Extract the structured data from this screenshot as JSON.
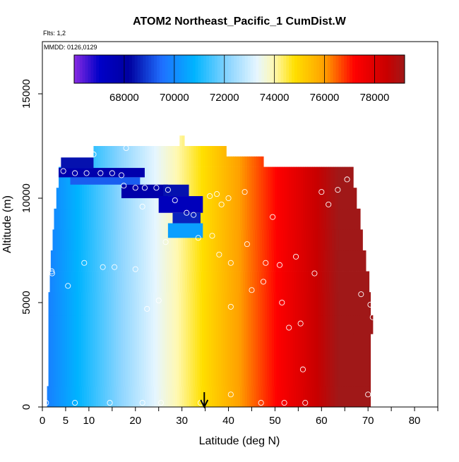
{
  "chart_data": {
    "type": "heatmap",
    "title": "ATOM2 Northeast_Pacific_1 CumDist.W",
    "subtitle_flights": "Flts: 1,2",
    "subtitle_dates": "MMDD: 0126,0129",
    "xlabel": "Latitude (deg N)",
    "ylabel": "Altitude (m)",
    "xlim": [
      0,
      85
    ],
    "ylim": [
      0,
      17500
    ],
    "x_ticks": [
      0,
      5,
      10,
      20,
      30,
      40,
      50,
      60,
      70,
      80
    ],
    "x_minor_ticks": [
      15,
      25,
      35,
      45,
      55,
      65,
      75,
      85
    ],
    "y_ticks": [
      0,
      5000,
      10000,
      15000
    ],
    "colorbar": {
      "range": [
        66000,
        79200
      ],
      "tick_values": [
        68000,
        70000,
        72000,
        74000,
        76000,
        78000
      ],
      "tick_labels": [
        "68000",
        "70000",
        "72000",
        "74000",
        "76000",
        "78000"
      ],
      "stops": [
        {
          "v": 66000,
          "c": "#8a2be2"
        },
        {
          "v": 67000,
          "c": "#0000c8"
        },
        {
          "v": 68200,
          "c": "#0000a0"
        },
        {
          "v": 69500,
          "c": "#1f6fff"
        },
        {
          "v": 70800,
          "c": "#00b4ff"
        },
        {
          "v": 72200,
          "c": "#8fd6ff"
        },
        {
          "v": 73300,
          "c": "#e6f6ff"
        },
        {
          "v": 74000,
          "c": "#fff8b0"
        },
        {
          "v": 74800,
          "c": "#ffe000"
        },
        {
          "v": 76000,
          "c": "#ffa000"
        },
        {
          "v": 77200,
          "c": "#ff0000"
        },
        {
          "v": 78500,
          "c": "#c80000"
        },
        {
          "v": 79200,
          "c": "#a01818"
        }
      ]
    },
    "field": {
      "x_min_deg": 1,
      "x_max_deg": 71,
      "base_value": 69800,
      "slope_per_deg": 150
    },
    "envelope": [
      {
        "y0": 0,
        "y1": 1000,
        "x0": 1,
        "x1": 70.5
      },
      {
        "y0": 1000,
        "y1": 3500,
        "x0": 1.3,
        "x1": 70.5
      },
      {
        "y0": 3500,
        "y1": 4400,
        "x0": 1.3,
        "x1": 71
      },
      {
        "y0": 4400,
        "y1": 5500,
        "x0": 1.3,
        "x1": 70.5
      },
      {
        "y0": 5500,
        "y1": 6500,
        "x0": 1.6,
        "x1": 70.2
      },
      {
        "y0": 6500,
        "y1": 7500,
        "x0": 1.8,
        "x1": 69.5
      },
      {
        "y0": 7500,
        "y1": 8500,
        "x0": 2.2,
        "x1": 68.8
      },
      {
        "y0": 8500,
        "y1": 9500,
        "x0": 2.5,
        "x1": 68.3
      },
      {
        "y0": 9500,
        "y1": 10500,
        "x0": 3.0,
        "x1": 67.5
      },
      {
        "y0": 10500,
        "y1": 11500,
        "x0": 3.5,
        "x1": 66.8
      },
      {
        "y0": 11500,
        "y1": 12000,
        "x0": 11.0,
        "x1": 47.5
      },
      {
        "y0": 12000,
        "y1": 12500,
        "x0": 11.0,
        "x1": 39.5
      },
      {
        "y0": 12500,
        "y1": 13000,
        "x0": 29.5,
        "x1": 30.5
      }
    ],
    "anomaly": [
      {
        "y0": 11000,
        "y1": 11450,
        "x0": 3.5,
        "x1": 22.0,
        "v": 67800
      },
      {
        "y0": 11450,
        "y1": 11950,
        "x0": 4.0,
        "x1": 11.0,
        "v": 68400
      },
      {
        "y0": 10650,
        "y1": 11000,
        "x0": 6.0,
        "x1": 21.0,
        "v": 69300
      },
      {
        "y0": 10000,
        "y1": 10650,
        "x0": 17.0,
        "x1": 27.0,
        "v": 67900
      },
      {
        "y0": 10100,
        "y1": 10650,
        "x0": 26.0,
        "x1": 31.5,
        "v": 68400
      },
      {
        "y0": 9300,
        "y1": 10100,
        "x0": 25.0,
        "x1": 34.5,
        "v": 67400
      },
      {
        "y0": 8800,
        "y1": 9300,
        "x0": 28.0,
        "x1": 34.0,
        "v": 68600
      },
      {
        "y0": 8100,
        "y1": 8800,
        "x0": 27.0,
        "x1": 34.5,
        "v": 70400
      }
    ],
    "observations": [
      [
        0.8,
        200
      ],
      [
        7,
        200
      ],
      [
        14.5,
        200
      ],
      [
        21.5,
        200
      ],
      [
        25.5,
        200
      ],
      [
        34,
        200
      ],
      [
        40.5,
        600
      ],
      [
        47,
        200
      ],
      [
        52,
        200
      ],
      [
        56.5,
        200
      ],
      [
        70,
        600
      ],
      [
        11,
        12100
      ],
      [
        18,
        12400
      ],
      [
        2.5,
        11200
      ],
      [
        4.5,
        11300
      ],
      [
        7,
        11200
      ],
      [
        9.5,
        11200
      ],
      [
        12.5,
        11200
      ],
      [
        15,
        11200
      ],
      [
        17,
        11100
      ],
      [
        17.5,
        10600
      ],
      [
        20,
        10500
      ],
      [
        22,
        10500
      ],
      [
        24.5,
        10500
      ],
      [
        27,
        10400
      ],
      [
        28.5,
        9900
      ],
      [
        31,
        9300
      ],
      [
        32.5,
        9200
      ],
      [
        21.5,
        9600
      ],
      [
        26.5,
        7900
      ],
      [
        36,
        10100
      ],
      [
        37.5,
        10200
      ],
      [
        38.5,
        9700
      ],
      [
        40,
        10000
      ],
      [
        43.5,
        10300
      ],
      [
        49.5,
        9100
      ],
      [
        33.5,
        8100
      ],
      [
        36.5,
        8200
      ],
      [
        44,
        7800
      ],
      [
        38,
        7300
      ],
      [
        40.5,
        6900
      ],
      [
        48,
        6900
      ],
      [
        51,
        6800
      ],
      [
        54.5,
        7200
      ],
      [
        2,
        6500
      ],
      [
        2.1,
        6400
      ],
      [
        9,
        6900
      ],
      [
        13,
        6700
      ],
      [
        15.5,
        6700
      ],
      [
        20,
        6600
      ],
      [
        5.5,
        5800
      ],
      [
        22.5,
        4700
      ],
      [
        25,
        5100
      ],
      [
        40.5,
        4800
      ],
      [
        45,
        5600
      ],
      [
        47.5,
        6000
      ],
      [
        51.5,
        5000
      ],
      [
        53,
        3800
      ],
      [
        55.5,
        4000
      ],
      [
        56,
        1800
      ],
      [
        58.5,
        6400
      ],
      [
        60,
        10300
      ],
      [
        61.5,
        9700
      ],
      [
        63.5,
        10400
      ],
      [
        65.5,
        10900
      ],
      [
        68.5,
        5400
      ],
      [
        70.5,
        4900
      ],
      [
        71,
        4300
      ]
    ],
    "marker_arrow_lat": 34.8,
    "grid": false,
    "colors": {
      "marker_stroke": "#ffffff",
      "axis": "#000000"
    }
  }
}
